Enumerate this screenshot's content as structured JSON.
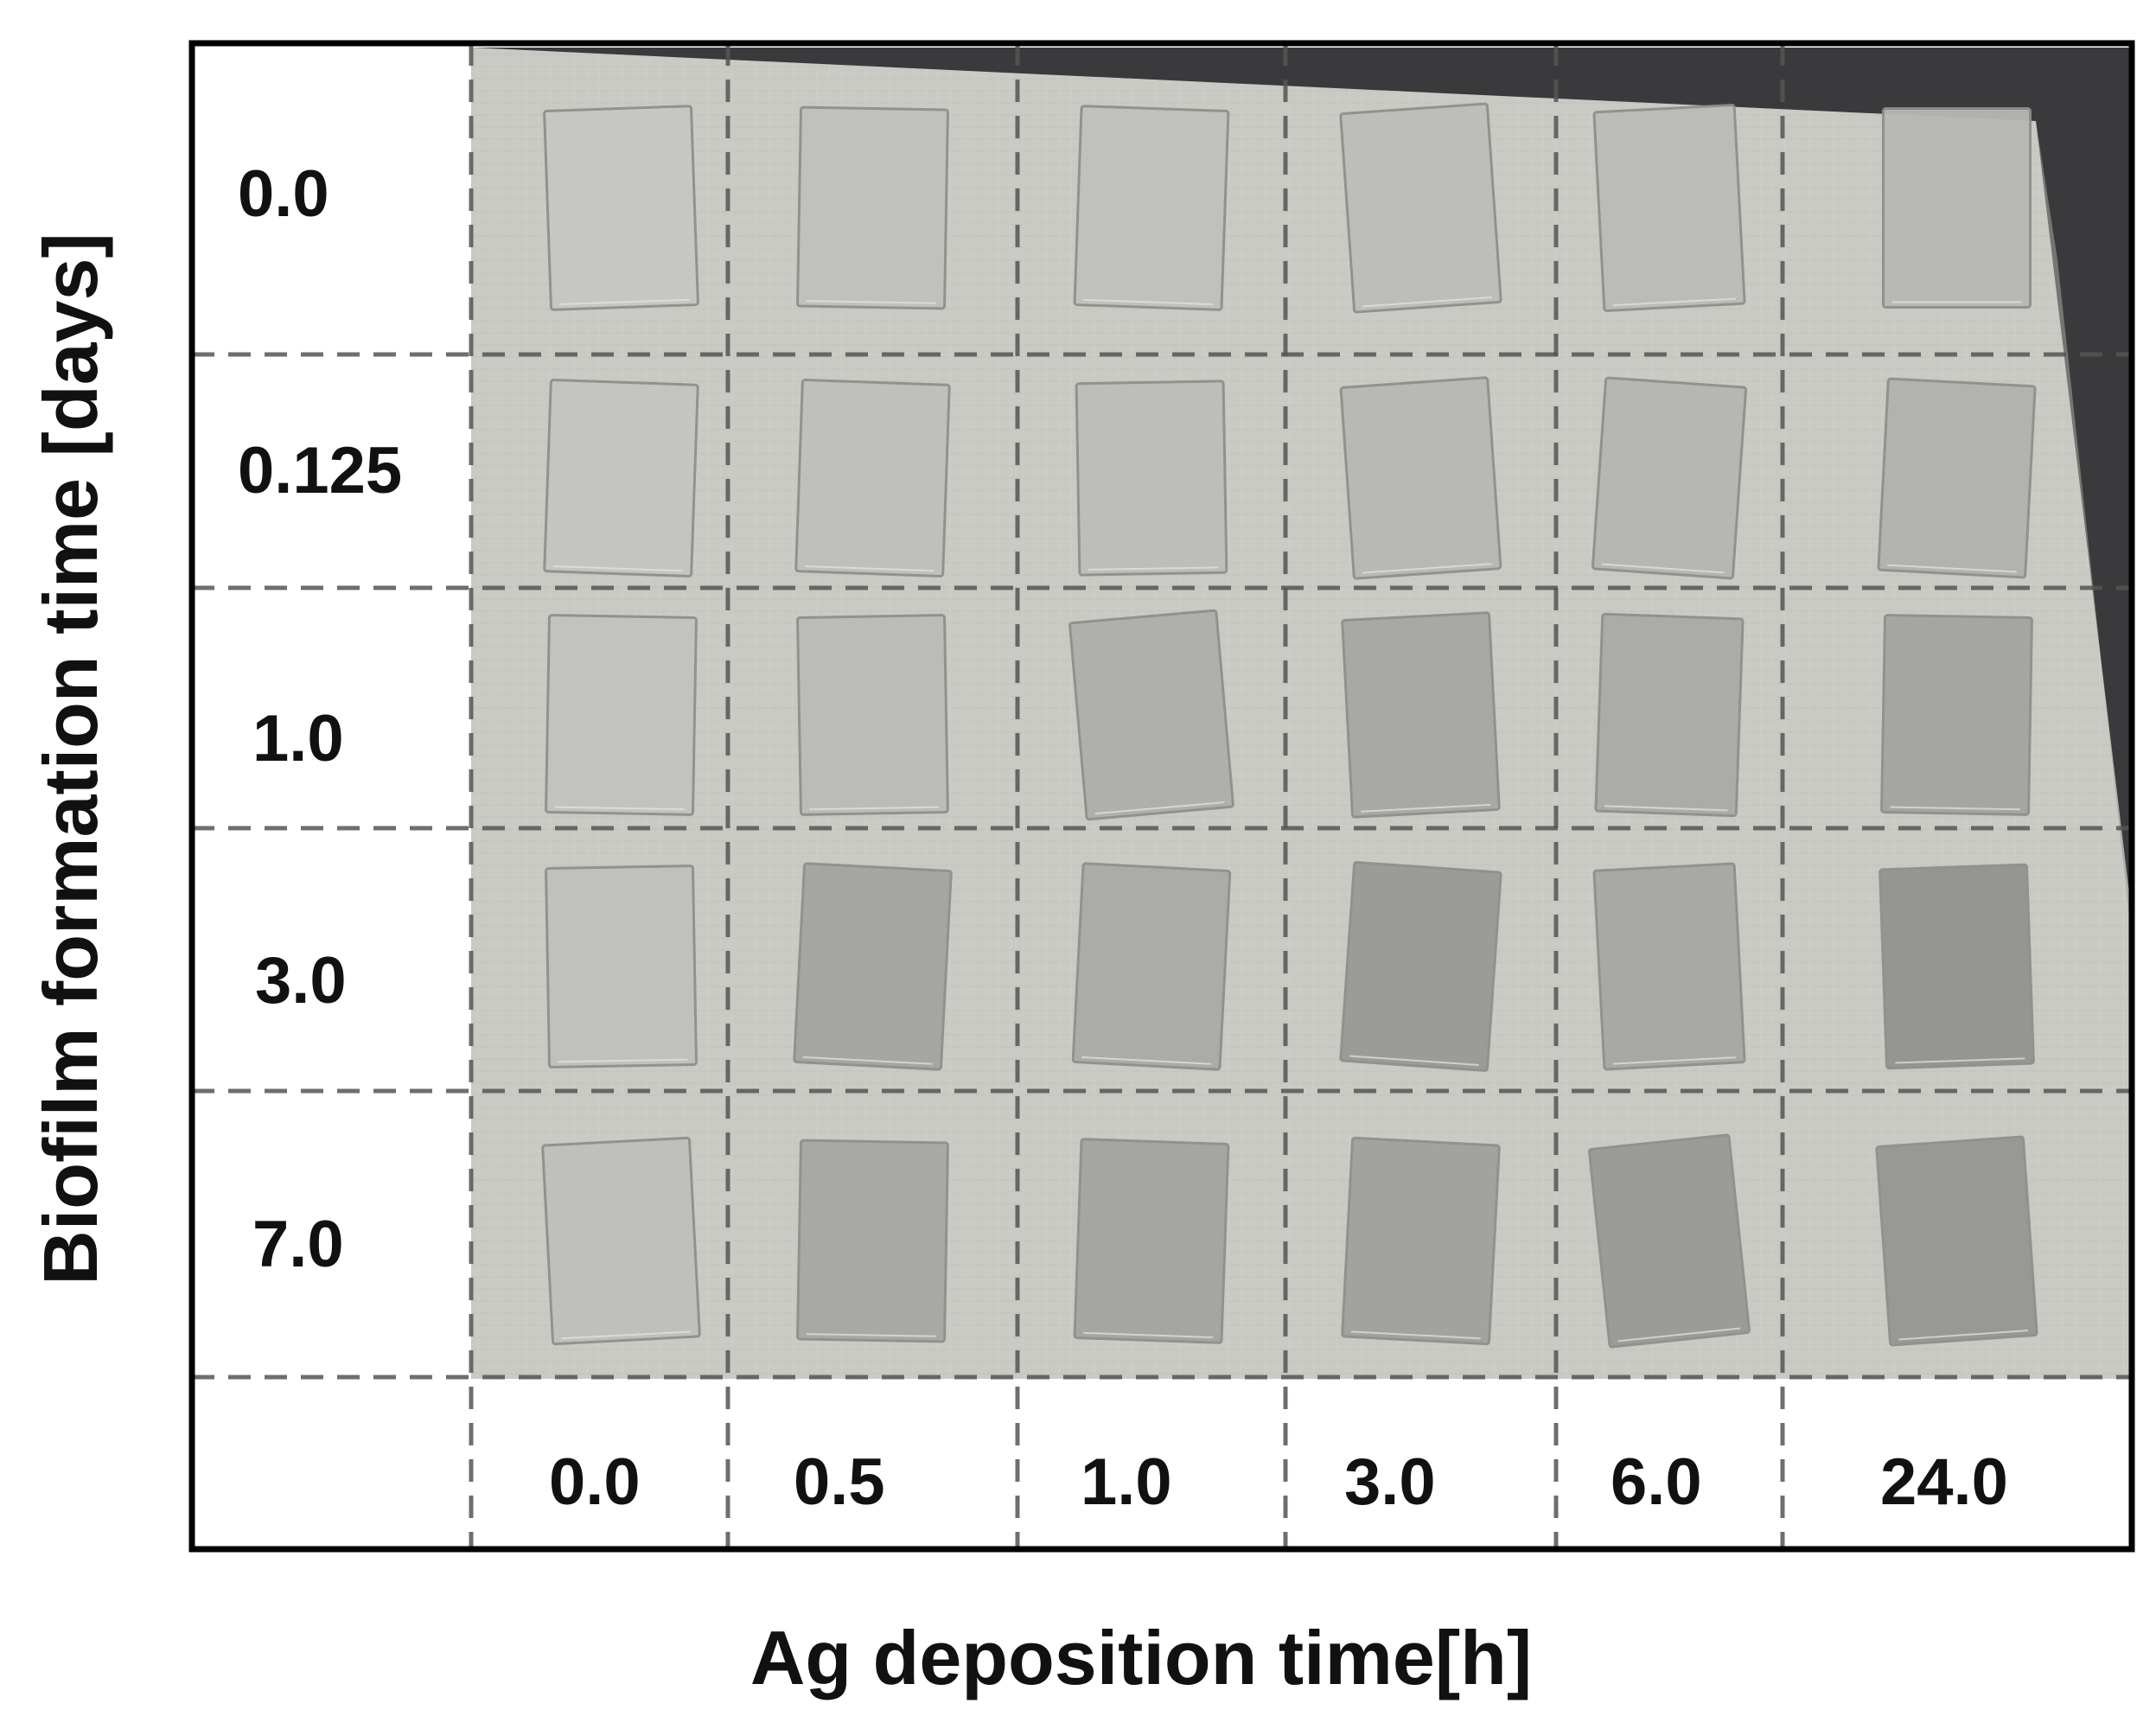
{
  "figure": {
    "y_axis_title": "Biofilm formation time [days]",
    "x_axis_title": "Ag deposition time[h]",
    "row_labels": [
      "0.0",
      "0.125",
      "1.0",
      "3.0",
      "7.0"
    ],
    "col_labels": [
      "0.0",
      "0.5",
      "1.0",
      "3.0",
      "6.0",
      "24.0"
    ],
    "colors": {
      "frame": "#000000",
      "background_cloth": "#c9cac4",
      "dark_surface": "#3a3a3c",
      "grid_dash": "#555555",
      "text": "#111111"
    },
    "sample_grid": {
      "rows": 5,
      "cols": 6,
      "row_biofilm_days": [
        0.0,
        0.125,
        1.0,
        3.0,
        7.0
      ],
      "col_ag_hours": [
        0.0,
        0.5,
        1.0,
        3.0,
        6.0,
        24.0
      ],
      "sample_darkness": [
        [
          0.02,
          0.05,
          0.05,
          0.07,
          0.08,
          0.1
        ],
        [
          0.03,
          0.06,
          0.07,
          0.1,
          0.12,
          0.14
        ],
        [
          0.04,
          0.08,
          0.16,
          0.2,
          0.18,
          0.22
        ],
        [
          0.05,
          0.22,
          0.18,
          0.28,
          0.2,
          0.32
        ],
        [
          0.06,
          0.2,
          0.22,
          0.24,
          0.28,
          0.3
        ]
      ]
    }
  }
}
